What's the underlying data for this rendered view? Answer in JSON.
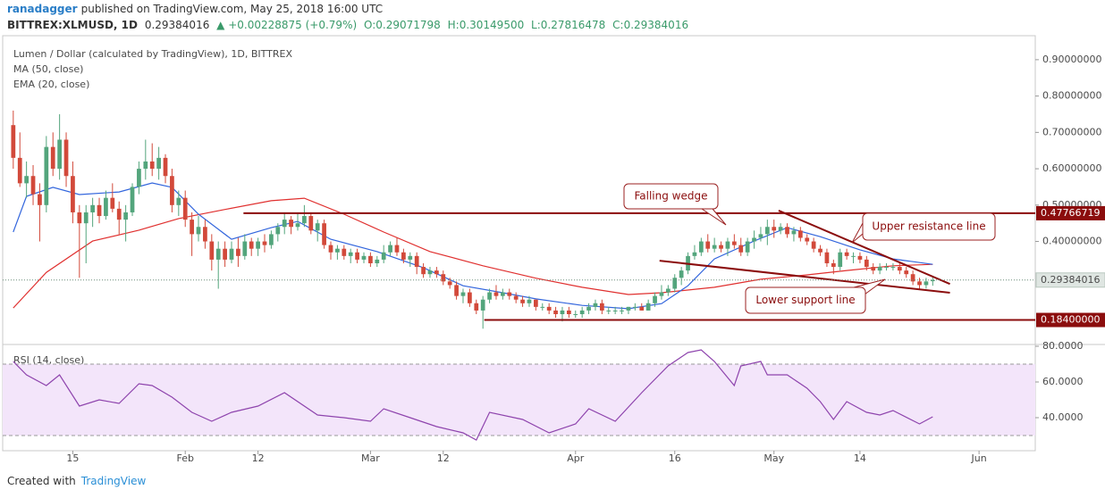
{
  "header": {
    "author": "ranadagger",
    "published": "published on TradingView.com, May 25, 2018 16:00 UTC",
    "symbol": "BITTREX:XLMUSD, 1D",
    "last": "0.29384016",
    "change": "▲ +0.00228875 (+0.79%)",
    "open": "O:0.29071798",
    "high": "H:0.30149500",
    "low": "L:0.27816478",
    "close": "C:0.29384016"
  },
  "footer": {
    "created": "Created with",
    "brand": "TradingView"
  },
  "chart_data": {
    "type": "candlestick",
    "title": "Lumen / Dollar (calculated by TradingView), 1D, BITTREX",
    "up_color": "#53a57c",
    "down_color": "#d2493a",
    "xlim": [
      -1.6,
      154.5
    ],
    "xticks": [
      {
        "value": 9,
        "label": "15"
      },
      {
        "value": 26,
        "label": "Feb"
      },
      {
        "value": 37,
        "label": "12"
      },
      {
        "value": 54,
        "label": "Mar"
      },
      {
        "value": 65,
        "label": "12"
      },
      {
        "value": 85,
        "label": "Apr"
      },
      {
        "value": 100,
        "label": "16"
      },
      {
        "value": 115,
        "label": "May"
      },
      {
        "value": 128,
        "label": "14"
      },
      {
        "value": 146,
        "label": "Jun"
      }
    ],
    "ylim": [
      0.119,
      0.966
    ],
    "yticks": [
      {
        "value": 0.4,
        "label": "0.40000000"
      },
      {
        "value": 0.5,
        "label": "0.50000000"
      },
      {
        "value": 0.6,
        "label": "0.60000000"
      },
      {
        "value": 0.7,
        "label": "0.70000000"
      },
      {
        "value": 0.8,
        "label": "0.80000000"
      },
      {
        "value": 0.9,
        "label": "0.90000000"
      }
    ],
    "candles": [
      [
        0.72,
        0.76,
        0.6,
        0.63
      ],
      [
        0.63,
        0.7,
        0.55,
        0.56
      ],
      [
        0.56,
        0.62,
        0.52,
        0.58
      ],
      [
        0.58,
        0.61,
        0.5,
        0.53
      ],
      [
        0.53,
        0.56,
        0.4,
        0.5
      ],
      [
        0.5,
        0.69,
        0.48,
        0.66
      ],
      [
        0.66,
        0.7,
        0.58,
        0.6
      ],
      [
        0.6,
        0.75,
        0.57,
        0.68
      ],
      [
        0.68,
        0.7,
        0.55,
        0.58
      ],
      [
        0.58,
        0.62,
        0.45,
        0.48
      ],
      [
        0.48,
        0.5,
        0.3,
        0.45
      ],
      [
        0.45,
        0.5,
        0.34,
        0.48
      ],
      [
        0.48,
        0.52,
        0.44,
        0.5
      ],
      [
        0.5,
        0.52,
        0.45,
        0.47
      ],
      [
        0.47,
        0.54,
        0.46,
        0.52
      ],
      [
        0.52,
        0.56,
        0.48,
        0.49
      ],
      [
        0.49,
        0.51,
        0.42,
        0.46
      ],
      [
        0.46,
        0.5,
        0.4,
        0.48
      ],
      [
        0.48,
        0.56,
        0.47,
        0.55
      ],
      [
        0.55,
        0.62,
        0.53,
        0.6
      ],
      [
        0.6,
        0.68,
        0.57,
        0.62
      ],
      [
        0.62,
        0.67,
        0.58,
        0.6
      ],
      [
        0.6,
        0.66,
        0.57,
        0.63
      ],
      [
        0.63,
        0.64,
        0.56,
        0.58
      ],
      [
        0.58,
        0.6,
        0.48,
        0.5
      ],
      [
        0.5,
        0.54,
        0.47,
        0.52
      ],
      [
        0.52,
        0.54,
        0.44,
        0.46
      ],
      [
        0.46,
        0.48,
        0.36,
        0.42
      ],
      [
        0.42,
        0.47,
        0.4,
        0.44
      ],
      [
        0.44,
        0.46,
        0.38,
        0.4
      ],
      [
        0.4,
        0.42,
        0.32,
        0.35
      ],
      [
        0.35,
        0.4,
        0.27,
        0.38
      ],
      [
        0.38,
        0.4,
        0.33,
        0.35
      ],
      [
        0.35,
        0.4,
        0.34,
        0.38
      ],
      [
        0.38,
        0.41,
        0.33,
        0.36
      ],
      [
        0.36,
        0.42,
        0.35,
        0.4
      ],
      [
        0.4,
        0.41,
        0.36,
        0.38
      ],
      [
        0.38,
        0.41,
        0.36,
        0.4
      ],
      [
        0.4,
        0.42,
        0.37,
        0.39
      ],
      [
        0.39,
        0.43,
        0.38,
        0.42
      ],
      [
        0.42,
        0.45,
        0.4,
        0.44
      ],
      [
        0.44,
        0.48,
        0.42,
        0.46
      ],
      [
        0.46,
        0.47,
        0.42,
        0.44
      ],
      [
        0.44,
        0.48,
        0.43,
        0.45
      ],
      [
        0.45,
        0.5,
        0.44,
        0.47
      ],
      [
        0.47,
        0.48,
        0.42,
        0.43
      ],
      [
        0.43,
        0.46,
        0.4,
        0.45
      ],
      [
        0.45,
        0.46,
        0.38,
        0.39
      ],
      [
        0.39,
        0.4,
        0.35,
        0.37
      ],
      [
        0.37,
        0.39,
        0.35,
        0.38
      ],
      [
        0.38,
        0.39,
        0.35,
        0.36
      ],
      [
        0.36,
        0.38,
        0.34,
        0.37
      ],
      [
        0.37,
        0.38,
        0.34,
        0.35
      ],
      [
        0.35,
        0.37,
        0.34,
        0.36
      ],
      [
        0.36,
        0.37,
        0.33,
        0.34
      ],
      [
        0.34,
        0.36,
        0.33,
        0.35
      ],
      [
        0.35,
        0.39,
        0.34,
        0.37
      ],
      [
        0.37,
        0.4,
        0.36,
        0.39
      ],
      [
        0.39,
        0.41,
        0.36,
        0.37
      ],
      [
        0.37,
        0.38,
        0.34,
        0.35
      ],
      [
        0.35,
        0.37,
        0.33,
        0.36
      ],
      [
        0.36,
        0.37,
        0.31,
        0.33
      ],
      [
        0.33,
        0.34,
        0.3,
        0.31
      ],
      [
        0.31,
        0.33,
        0.3,
        0.32
      ],
      [
        0.32,
        0.33,
        0.3,
        0.31
      ],
      [
        0.31,
        0.32,
        0.28,
        0.29
      ],
      [
        0.29,
        0.3,
        0.27,
        0.28
      ],
      [
        0.28,
        0.29,
        0.24,
        0.25
      ],
      [
        0.25,
        0.27,
        0.23,
        0.26
      ],
      [
        0.26,
        0.27,
        0.22,
        0.23
      ],
      [
        0.23,
        0.24,
        0.2,
        0.21
      ],
      [
        0.21,
        0.25,
        0.16,
        0.24
      ],
      [
        0.24,
        0.27,
        0.23,
        0.26
      ],
      [
        0.26,
        0.28,
        0.24,
        0.25
      ],
      [
        0.25,
        0.27,
        0.24,
        0.26
      ],
      [
        0.26,
        0.27,
        0.24,
        0.25
      ],
      [
        0.25,
        0.26,
        0.23,
        0.24
      ],
      [
        0.24,
        0.25,
        0.22,
        0.23
      ],
      [
        0.23,
        0.25,
        0.22,
        0.24
      ],
      [
        0.24,
        0.24,
        0.21,
        0.22
      ],
      [
        0.22,
        0.23,
        0.21,
        0.22
      ],
      [
        0.22,
        0.23,
        0.2,
        0.21
      ],
      [
        0.21,
        0.22,
        0.19,
        0.2
      ],
      [
        0.2,
        0.22,
        0.18,
        0.21
      ],
      [
        0.21,
        0.22,
        0.19,
        0.2
      ],
      [
        0.2,
        0.21,
        0.19,
        0.2
      ],
      [
        0.2,
        0.22,
        0.19,
        0.21
      ],
      [
        0.21,
        0.23,
        0.2,
        0.22
      ],
      [
        0.22,
        0.24,
        0.21,
        0.23
      ],
      [
        0.23,
        0.24,
        0.2,
        0.21
      ],
      [
        0.21,
        0.22,
        0.2,
        0.21
      ],
      [
        0.21,
        0.22,
        0.2,
        0.21
      ],
      [
        0.21,
        0.22,
        0.2,
        0.21
      ],
      [
        0.21,
        0.22,
        0.2,
        0.22
      ],
      [
        0.22,
        0.23,
        0.21,
        0.22
      ],
      [
        0.22,
        0.23,
        0.21,
        0.21
      ],
      [
        0.21,
        0.24,
        0.21,
        0.23
      ],
      [
        0.23,
        0.26,
        0.22,
        0.25
      ],
      [
        0.25,
        0.28,
        0.24,
        0.26
      ],
      [
        0.26,
        0.28,
        0.25,
        0.27
      ],
      [
        0.27,
        0.31,
        0.26,
        0.3
      ],
      [
        0.3,
        0.33,
        0.28,
        0.32
      ],
      [
        0.32,
        0.37,
        0.31,
        0.36
      ],
      [
        0.36,
        0.39,
        0.35,
        0.37
      ],
      [
        0.37,
        0.41,
        0.36,
        0.4
      ],
      [
        0.4,
        0.42,
        0.37,
        0.38
      ],
      [
        0.38,
        0.41,
        0.37,
        0.39
      ],
      [
        0.39,
        0.4,
        0.37,
        0.38
      ],
      [
        0.38,
        0.41,
        0.36,
        0.4
      ],
      [
        0.4,
        0.42,
        0.38,
        0.39
      ],
      [
        0.39,
        0.41,
        0.36,
        0.37
      ],
      [
        0.37,
        0.41,
        0.36,
        0.4
      ],
      [
        0.4,
        0.43,
        0.38,
        0.41
      ],
      [
        0.41,
        0.44,
        0.4,
        0.42
      ],
      [
        0.42,
        0.46,
        0.39,
        0.44
      ],
      [
        0.44,
        0.46,
        0.41,
        0.43
      ],
      [
        0.43,
        0.45,
        0.42,
        0.44
      ],
      [
        0.44,
        0.45,
        0.41,
        0.42
      ],
      [
        0.42,
        0.44,
        0.4,
        0.43
      ],
      [
        0.43,
        0.44,
        0.4,
        0.41
      ],
      [
        0.41,
        0.42,
        0.39,
        0.4
      ],
      [
        0.4,
        0.41,
        0.37,
        0.38
      ],
      [
        0.38,
        0.39,
        0.36,
        0.37
      ],
      [
        0.37,
        0.38,
        0.33,
        0.34
      ],
      [
        0.34,
        0.35,
        0.31,
        0.33
      ],
      [
        0.33,
        0.38,
        0.32,
        0.37
      ],
      [
        0.37,
        0.38,
        0.35,
        0.36
      ],
      [
        0.36,
        0.37,
        0.34,
        0.36
      ],
      [
        0.36,
        0.37,
        0.34,
        0.35
      ],
      [
        0.35,
        0.36,
        0.32,
        0.33
      ],
      [
        0.33,
        0.34,
        0.31,
        0.32
      ],
      [
        0.32,
        0.34,
        0.31,
        0.33
      ],
      [
        0.33,
        0.34,
        0.32,
        0.33
      ],
      [
        0.33,
        0.34,
        0.32,
        0.33
      ],
      [
        0.33,
        0.34,
        0.31,
        0.32
      ],
      [
        0.32,
        0.33,
        0.3,
        0.31
      ],
      [
        0.31,
        0.32,
        0.28,
        0.29
      ],
      [
        0.29,
        0.3,
        0.27,
        0.28
      ],
      [
        0.28,
        0.3,
        0.27,
        0.29
      ],
      [
        0.29071798,
        0.301495,
        0.27816478,
        0.29384016
      ]
    ],
    "series": [
      {
        "name": "MA (50, close)",
        "color": "#e0302f",
        "x": [
          0,
          5,
          12,
          19,
          25,
          32,
          39,
          44,
          50,
          56,
          63,
          71,
          79,
          86,
          93,
          98,
          106,
          113,
          120,
          126,
          133,
          139
        ],
        "values": [
          0.217,
          0.315,
          0.401,
          0.431,
          0.463,
          0.488,
          0.512,
          0.519,
          0.475,
          0.426,
          0.372,
          0.333,
          0.299,
          0.274,
          0.254,
          0.259,
          0.274,
          0.296,
          0.308,
          0.32,
          0.333,
          0.337
        ]
      },
      {
        "name": "EMA (20, close)",
        "color": "#3366dd",
        "x": [
          0,
          2,
          6,
          10,
          16,
          21,
          24,
          28,
          33,
          39,
          43,
          48,
          55,
          62,
          68,
          74,
          79,
          86,
          93,
          98,
          102,
          106,
          112,
          117,
          122,
          128,
          133,
          139
        ],
        "values": [
          0.426,
          0.524,
          0.549,
          0.529,
          0.536,
          0.561,
          0.549,
          0.475,
          0.406,
          0.438,
          0.455,
          0.406,
          0.372,
          0.328,
          0.278,
          0.259,
          0.242,
          0.224,
          0.215,
          0.229,
          0.278,
          0.352,
          0.401,
          0.438,
          0.413,
          0.377,
          0.352,
          0.337
        ]
      }
    ],
    "levels": [
      {
        "value": 0.47766719,
        "start": 34.8
      },
      {
        "value": 0.184,
        "label": "0.18400000",
        "start": 71.2
      }
    ],
    "trendlines": [
      {
        "x": [
          115.7,
          141.6
        ],
        "y": [
          0.485,
          0.283
        ]
      },
      {
        "x": [
          97.7,
          141.6
        ],
        "y": [
          0.347,
          0.259
        ]
      }
    ],
    "annotations": [
      "Falling wedge",
      "Upper resistance line",
      "Lower support line"
    ],
    "rsi": {
      "name": "RSI (14, close)",
      "color": "#8e44ad",
      "ylim": [
        24,
        80
      ],
      "band": [
        30,
        70
      ],
      "yticks": [
        {
          "value": 40,
          "label": "40.0000"
        },
        {
          "value": 60,
          "label": "60.0000"
        },
        {
          "value": 80,
          "label": "80.0000"
        }
      ],
      "x": [
        0,
        2,
        5,
        7,
        10,
        13,
        16,
        19,
        21,
        24,
        27,
        30,
        33,
        37,
        41,
        46,
        50,
        54,
        56,
        60,
        64,
        68,
        70,
        72,
        77,
        81,
        85,
        87,
        91,
        95,
        99,
        102,
        104,
        106,
        109,
        110,
        113,
        114,
        117,
        120,
        122,
        124,
        126,
        129,
        131,
        133,
        137,
        139
      ],
      "values": [
        71.5,
        64,
        58,
        64,
        46.5,
        50,
        48,
        59,
        58,
        51.5,
        43,
        38,
        43,
        46.5,
        54,
        41.5,
        40,
        38,
        45,
        40,
        35,
        31.5,
        27.5,
        43,
        39,
        31.5,
        36.5,
        45,
        38,
        54,
        69,
        76.5,
        78,
        71.5,
        58,
        69,
        71.5,
        64,
        64,
        56.5,
        49,
        39,
        49,
        43,
        41.5,
        44,
        36.5,
        40.5
      ]
    }
  }
}
